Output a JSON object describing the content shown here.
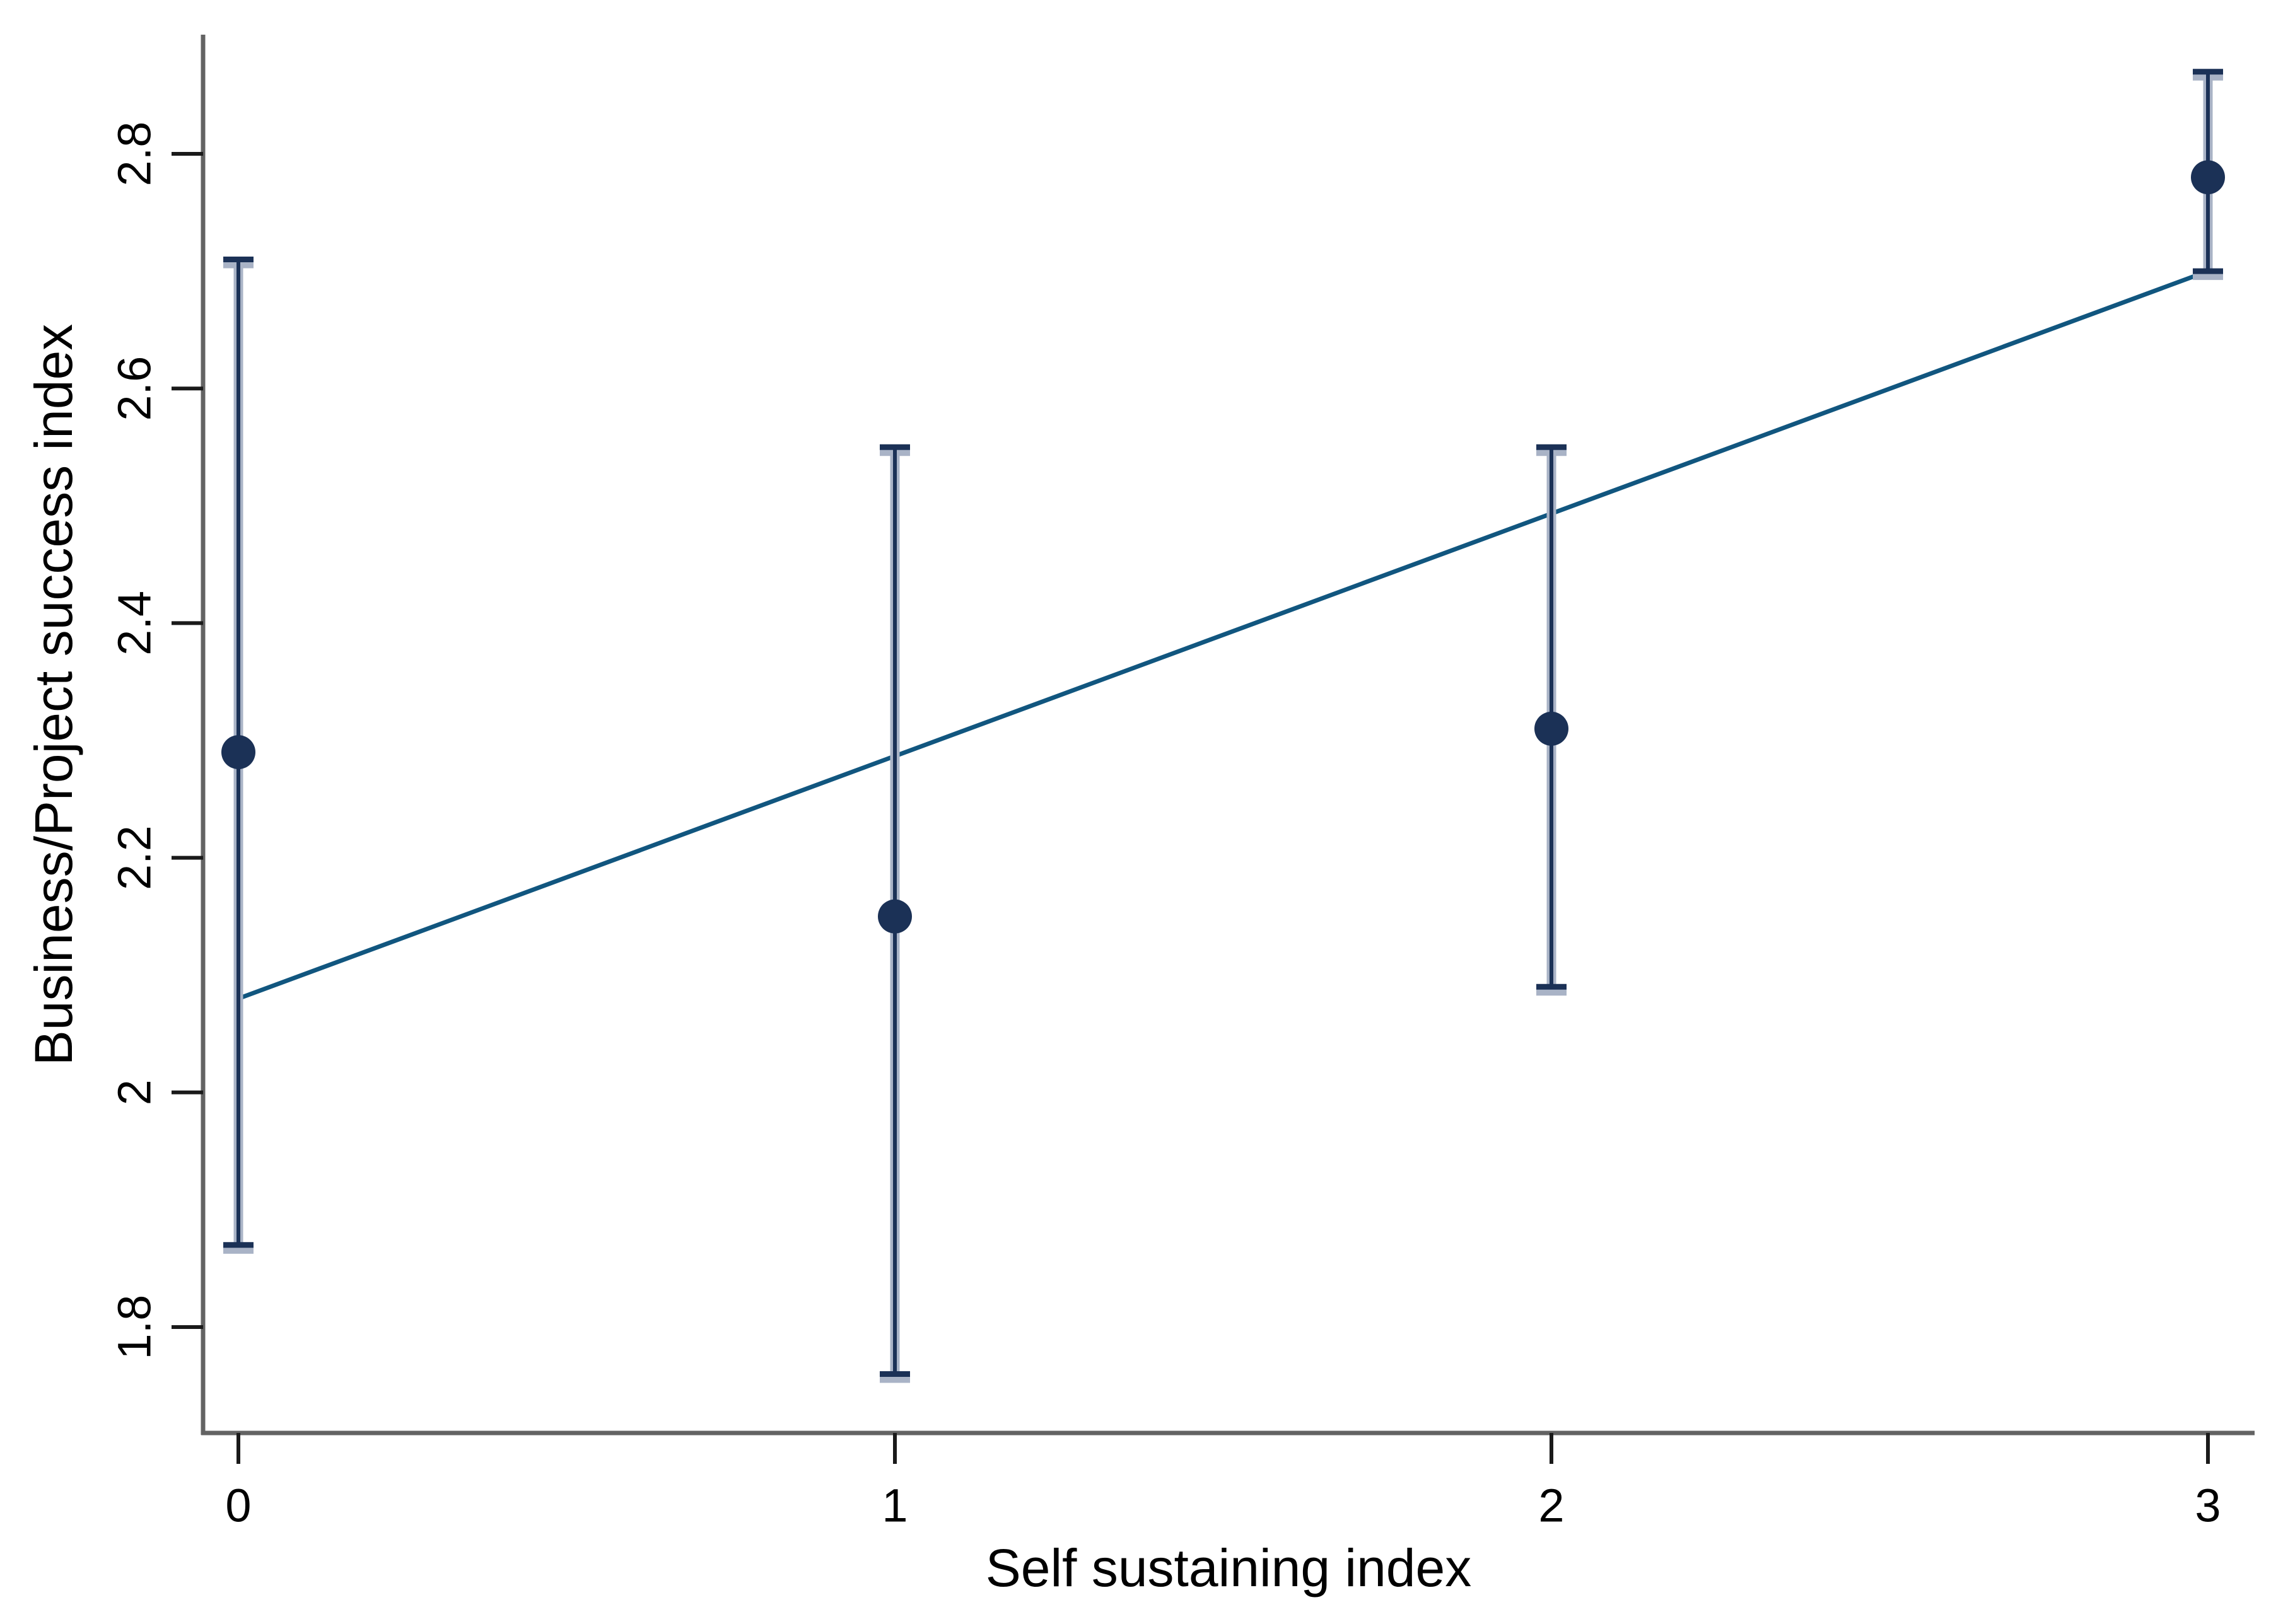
{
  "chart_data": {
    "type": "scatter",
    "subtype": "means-with-95ci-and-linear-fit",
    "title": "",
    "xlabel": "Self sustaining index",
    "ylabel": "Business/Project success index",
    "x_ticks": [
      0,
      1,
      2,
      3
    ],
    "x_tick_labels": [
      "0",
      "1",
      "2",
      "3"
    ],
    "y_ticks": [
      1.8,
      2.0,
      2.2,
      2.4,
      2.6,
      2.8
    ],
    "y_tick_labels": [
      "1.8",
      "2",
      "2.2",
      "2.4",
      "2.6",
      "2.8"
    ],
    "xlim": [
      -0.06,
      3.07
    ],
    "ylim": [
      1.71,
      2.92
    ],
    "grid": false,
    "legend": "none",
    "points": [
      {
        "x": 0,
        "mean": 2.29,
        "ci_low": 1.87,
        "ci_high": 2.71
      },
      {
        "x": 1,
        "mean": 2.15,
        "ci_low": 1.76,
        "ci_high": 2.55
      },
      {
        "x": 2,
        "mean": 2.31,
        "ci_low": 2.09,
        "ci_high": 2.55
      },
      {
        "x": 3,
        "mean": 2.78,
        "ci_low": 2.7,
        "ci_high": 2.87
      }
    ],
    "fit_line": {
      "x": [
        0,
        3
      ],
      "y": [
        2.08,
        2.7
      ]
    },
    "colors": {
      "marker": "#1b3156",
      "error_bar_core": "#1b3156",
      "error_bar_halo": "#a9b3c6",
      "fit_line": "#11567f",
      "axis_line": "#636363",
      "tick_mark": "#1a1a1a",
      "text": "#000000",
      "background": "#ffffff"
    }
  }
}
